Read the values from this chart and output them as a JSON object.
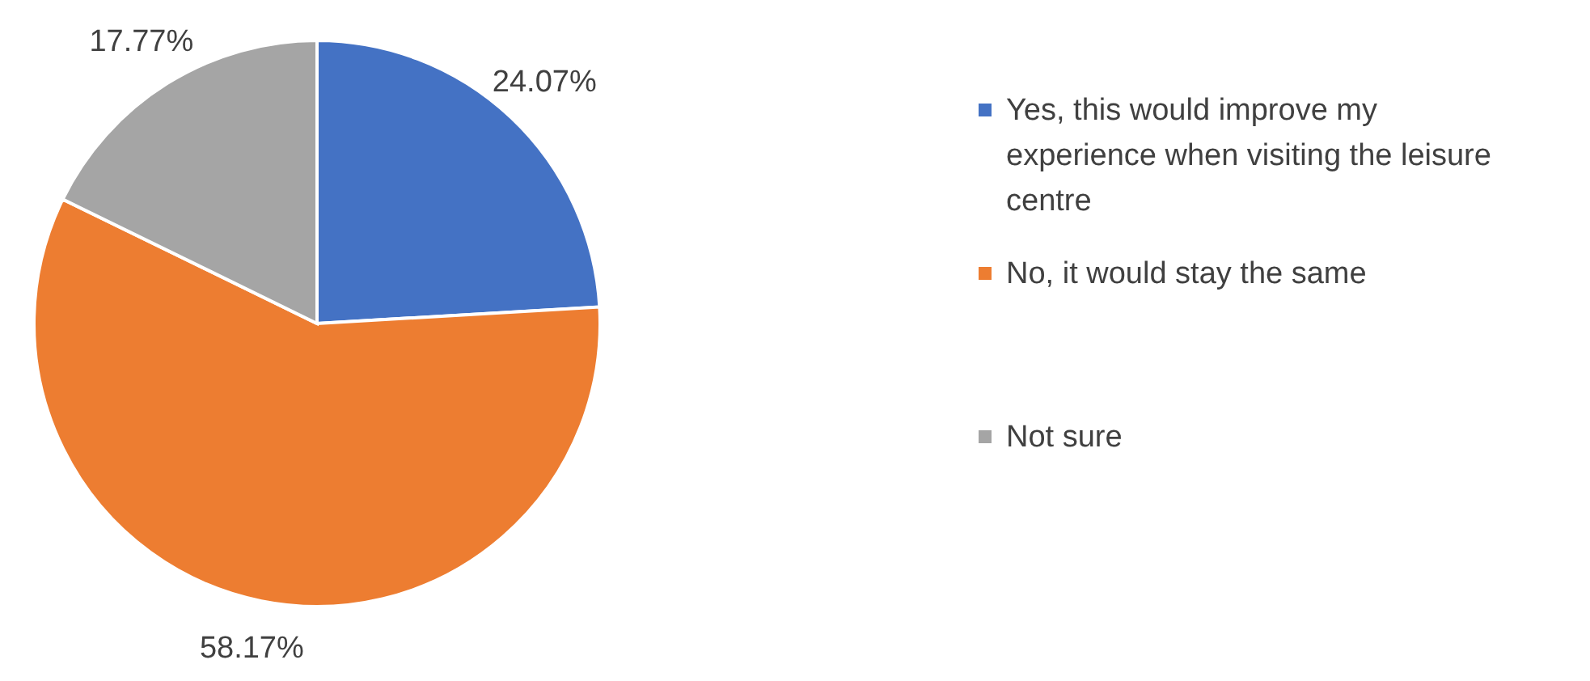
{
  "chart_data": {
    "type": "pie",
    "categories": [
      "Yes, this would improve my experience when visiting the leisure centre",
      "No, it would stay the same",
      "Not sure"
    ],
    "values": [
      24.07,
      58.17,
      17.77
    ],
    "value_labels": [
      "24.07%",
      "58.17%",
      "17.77%"
    ],
    "colors": [
      "#4472c4",
      "#ed7d31",
      "#a5a5a5"
    ],
    "legend": "right"
  }
}
